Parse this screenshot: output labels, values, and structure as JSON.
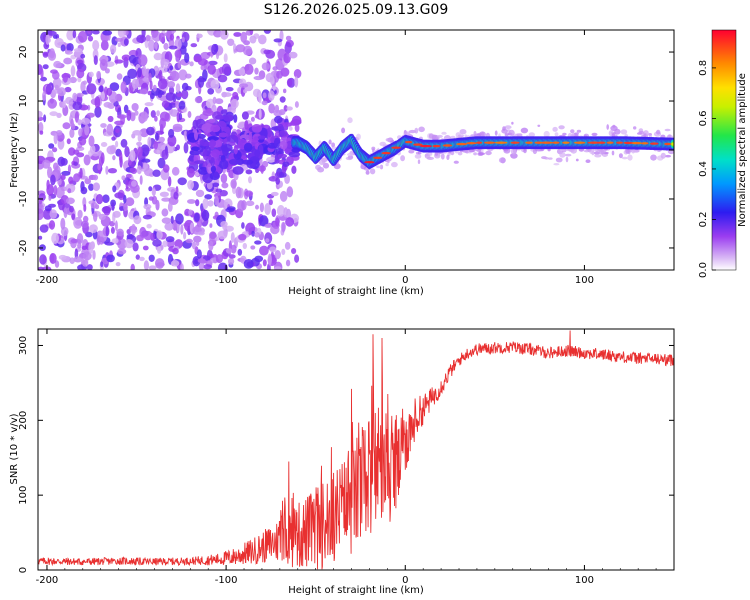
{
  "title": "S126.2026.025.09.13.G09",
  "chart_data": [
    {
      "type": "heatmap",
      "xlabel": "Height of straight line (km)",
      "ylabel": "Frequency (Hz)",
      "xlim": [
        -205,
        150
      ],
      "ylim": [
        -24.5,
        24.5
      ],
      "xticks": [
        "-200",
        "-100",
        "0",
        "100"
      ],
      "xtick_values": [
        -200,
        -100,
        0,
        100
      ],
      "yticks": [
        "-20",
        "-10",
        "0",
        "10",
        "20"
      ],
      "ytick_values": [
        -20,
        -10,
        0,
        10,
        20
      ],
      "colorbar": {
        "label": "Normalized spectral amplitude",
        "range": [
          0,
          0.95
        ],
        "ticks": [
          "0.0",
          "0.2",
          "0.4",
          "0.6",
          "0.8"
        ],
        "tick_values": [
          0.0,
          0.2,
          0.4,
          0.6,
          0.8
        ]
      },
      "ridge": {
        "description_points_x": [
          -60,
          -55,
          -50,
          -45,
          -40,
          -35,
          -30,
          -25,
          -20,
          -15,
          -10,
          -5,
          0,
          10,
          20,
          40,
          60,
          80,
          100,
          120,
          150
        ],
        "description_points_freq": [
          1.5,
          0.5,
          -1.5,
          0.5,
          -2.0,
          0.5,
          2.0,
          -1.0,
          -2.5,
          -1.5,
          -0.5,
          0.5,
          1.8,
          0.8,
          0.8,
          1.5,
          1.5,
          1.5,
          1.5,
          1.5,
          1.2
        ]
      }
    },
    {
      "type": "line",
      "xlabel": "Height of straight line (km)",
      "ylabel": "SNR (10 * v/v)",
      "xlim": [
        -205,
        150
      ],
      "ylim": [
        0,
        322
      ],
      "xticks": [
        "-200",
        "-100",
        "0",
        "100"
      ],
      "xtick_values": [
        -200,
        -100,
        0,
        100
      ],
      "yticks": [
        "0",
        "100",
        "200",
        "300"
      ],
      "ytick_values": [
        0,
        100,
        200,
        300
      ],
      "color": "#e83030",
      "series": [
        {
          "name": "SNR",
          "x": [
            -205,
            -180,
            -160,
            -140,
            -120,
            -105,
            -95,
            -85,
            -75,
            -70,
            -65,
            -60,
            -55,
            -50,
            -45,
            -40,
            -35,
            -30,
            -25,
            -20,
            -15,
            -10,
            -5,
            0,
            5,
            10,
            15,
            20,
            25,
            30,
            35,
            40,
            50,
            60,
            70,
            80,
            90,
            100,
            110,
            120,
            130,
            140,
            150
          ],
          "mean": [
            12,
            11,
            12,
            11,
            12,
            14,
            18,
            25,
            35,
            40,
            45,
            45,
            50,
            55,
            60,
            70,
            80,
            90,
            110,
            130,
            140,
            130,
            130,
            170,
            200,
            215,
            230,
            245,
            265,
            280,
            290,
            295,
            297,
            298,
            295,
            290,
            293,
            290,
            288,
            285,
            283,
            282,
            280
          ],
          "noise": [
            5,
            5,
            5,
            5,
            5,
            8,
            12,
            18,
            25,
            32,
            40,
            45,
            50,
            55,
            60,
            65,
            70,
            75,
            80,
            85,
            85,
            70,
            60,
            45,
            30,
            20,
            15,
            12,
            10,
            8,
            8,
            8,
            8,
            8,
            8,
            8,
            8,
            8,
            8,
            8,
            8,
            8,
            8
          ],
          "peaks_x": [
            -65,
            -30,
            -18,
            -13,
            92
          ],
          "peaks_y": [
            145,
            242,
            315,
            310,
            320
          ]
        }
      ]
    }
  ]
}
